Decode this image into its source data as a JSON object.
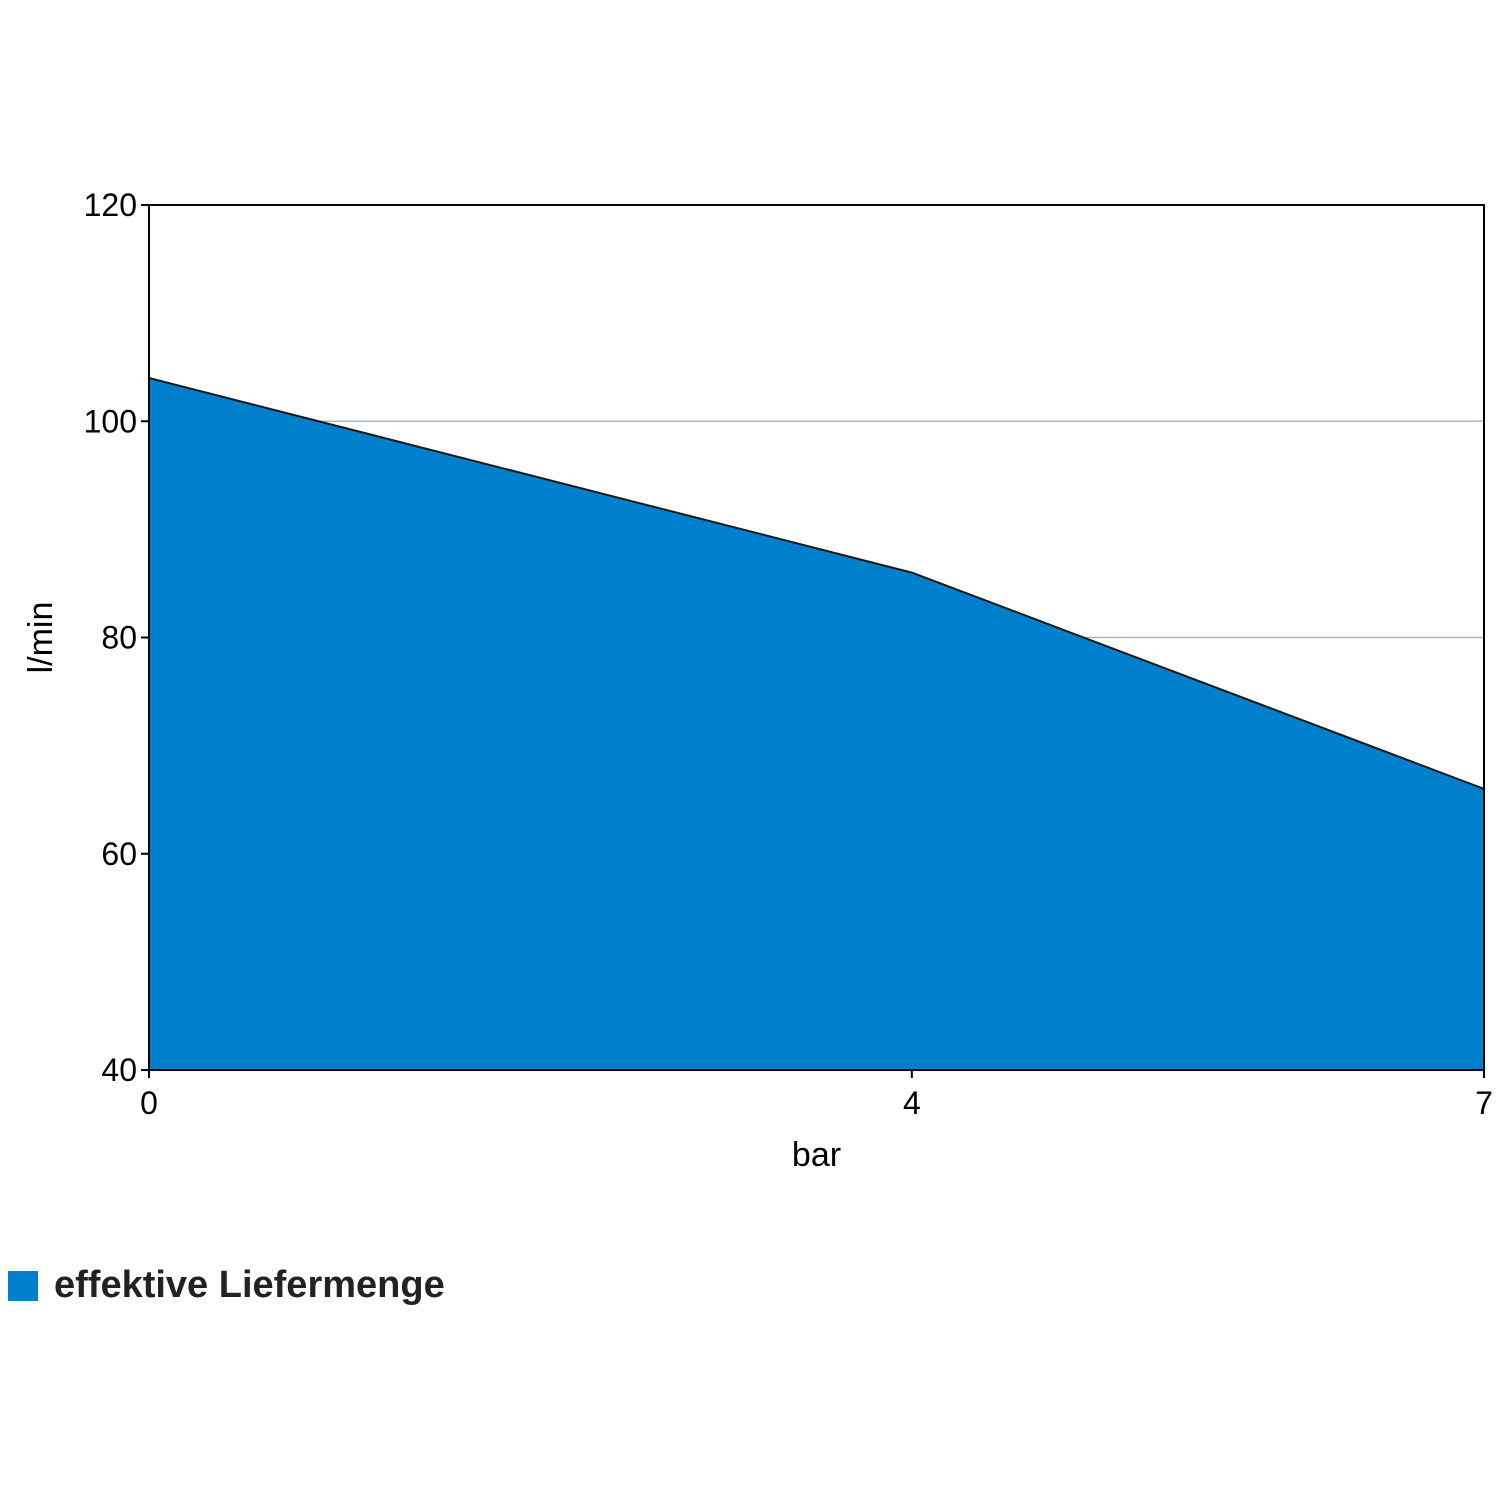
{
  "chart_data": {
    "type": "area",
    "title": "",
    "xlabel": "bar",
    "ylabel": "l/min",
    "x": [
      0,
      4,
      7
    ],
    "series": [
      {
        "name": "effektive Liefermenge",
        "values": [
          104,
          86,
          66
        ]
      }
    ],
    "xlim": [
      0,
      7
    ],
    "ylim": [
      40,
      120
    ],
    "x_ticks": [
      "0",
      "4",
      "7"
    ],
    "y_ticks": [
      "40",
      "60",
      "80",
      "100",
      "120"
    ],
    "y_tick_values": [
      40,
      60,
      80,
      100,
      120
    ],
    "grid": "horizontal",
    "legend_position": "bottom-left"
  },
  "colors": {
    "fill": "#0080CC",
    "stroke": "#1a1a1a",
    "grid": "#A9B7C2"
  }
}
